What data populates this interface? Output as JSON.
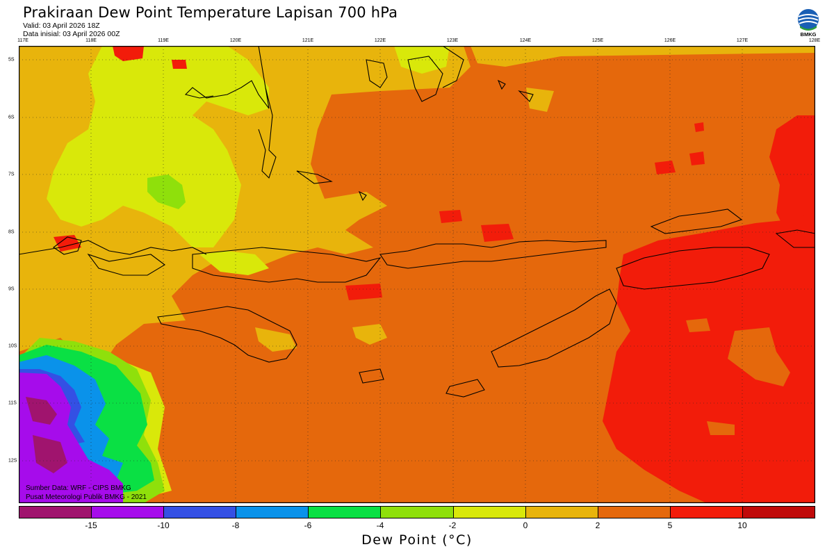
{
  "header": {
    "title": "Prakiraan Dew Point Temperature Lapisan 700 hPa",
    "valid": "Valid: 03 April 2026 18Z",
    "init": "Data inisial: 03 April 2026 00Z"
  },
  "logo": {
    "text": "BMKG",
    "icon": "bmkg-logo"
  },
  "map": {
    "lon_labels": [
      "117E",
      "118E",
      "119E",
      "120E",
      "121E",
      "122E",
      "123E",
      "124E",
      "125E",
      "126E",
      "127E",
      "128E"
    ],
    "lat_labels": [
      "5S",
      "6S",
      "7S",
      "8S",
      "9S",
      "10S",
      "11S",
      "12S"
    ],
    "background_color": "#E5680C",
    "regions": [
      {
        "name": "dry-west-yellow",
        "color": "#E8B40C"
      },
      {
        "name": "dry-northwest-lightyellow",
        "color": "#D9E80A"
      },
      {
        "name": "green-patch",
        "color": "#8FE00B"
      },
      {
        "name": "moist-east-red",
        "color": "#F21C0A"
      },
      {
        "name": "very-dry-southwest",
        "color": "#A60CEB"
      }
    ]
  },
  "source": {
    "line1": "Sumber Data: WRF - CIPS BMKG",
    "line2": "Pusat Meteorologi Publik BMKG - 2021"
  },
  "colorbar": {
    "title": "Dew Point (°C)",
    "ticks": [
      "-15",
      "-10",
      "-8",
      "-6",
      "-4",
      "-2",
      "0",
      "2",
      "5",
      "10"
    ],
    "colors": [
      "#A0146E",
      "#A60CEB",
      "#3450E4",
      "#0A92EA",
      "#0AE044",
      "#8FE00B",
      "#D9E80A",
      "#E8B40C",
      "#E5680C",
      "#F21C0A",
      "#C00A0A"
    ]
  }
}
